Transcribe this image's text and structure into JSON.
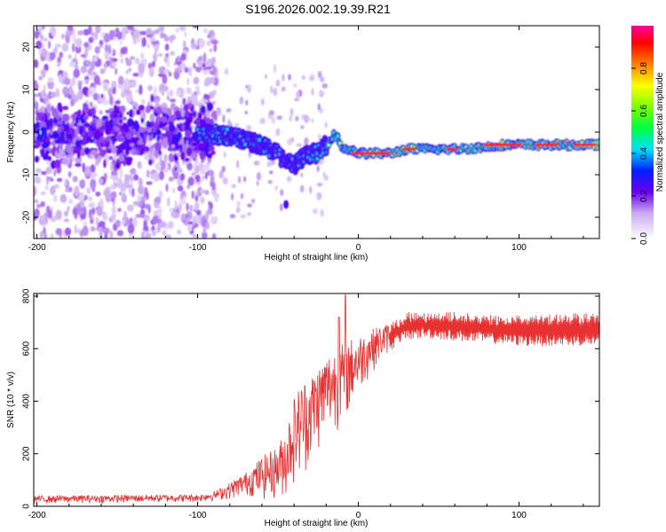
{
  "title": "S196.2026.002.19.39.R21",
  "chart_data": [
    {
      "type": "heatmap",
      "name": "spectrogram",
      "xlabel": "Height of straight line (km)",
      "ylabel": "Frequency (Hz)",
      "xlim": [
        -202,
        150
      ],
      "ylim": [
        -25,
        25
      ],
      "xticks": [
        -200,
        -100,
        0,
        100
      ],
      "yticks": [
        -20,
        -10,
        0,
        10,
        20
      ],
      "ridge": {
        "x": [
          -100,
          -90,
          -80,
          -70,
          -60,
          -50,
          -45,
          -40,
          -35,
          -30,
          -25,
          -20,
          -17,
          -15,
          -12,
          -10,
          -5,
          0,
          10,
          20,
          30,
          40,
          60,
          80,
          90,
          100,
          120,
          150
        ],
        "freq": [
          0,
          -0.5,
          -1,
          -2,
          -3,
          -5,
          -7,
          -8,
          -6,
          -5,
          -5,
          -3,
          -2,
          0,
          -2,
          -4,
          -4,
          -5,
          -5,
          -5,
          -4,
          -4,
          -4,
          -3.5,
          -3,
          -3,
          -3,
          -3
        ]
      },
      "colorbar": {
        "label": "Normalized spectral amplitude",
        "range": [
          0,
          1
        ],
        "ticks": [
          0.0,
          0.2,
          0.4,
          0.6,
          0.8
        ],
        "tick_labels": [
          "0.0",
          "0.2",
          "0.4",
          "0.6",
          "0.8"
        ]
      }
    },
    {
      "type": "line",
      "name": "snr",
      "xlabel": "Height of straight line (km)",
      "ylabel": "SNR (10 * v/v)",
      "xlim": [
        -202,
        150
      ],
      "ylim": [
        0,
        810
      ],
      "xticks": [
        -200,
        -100,
        0,
        100
      ],
      "yticks": [
        0,
        200,
        400,
        600,
        800
      ],
      "color": "#e83030",
      "envelope": {
        "x": [
          -202,
          -100,
          -90,
          -80,
          -70,
          -60,
          -50,
          -45,
          -40,
          -35,
          -30,
          -25,
          -20,
          -15,
          -10,
          -5,
          0,
          10,
          20,
          25,
          30,
          40,
          60,
          80,
          100,
          120,
          150
        ],
        "low": [
          10,
          15,
          20,
          25,
          40,
          20,
          20,
          30,
          80,
          100,
          150,
          200,
          250,
          280,
          300,
          350,
          420,
          520,
          590,
          620,
          630,
          640,
          630,
          620,
          610,
          610,
          610
        ],
        "high": [
          40,
          45,
          55,
          90,
          130,
          190,
          230,
          300,
          420,
          480,
          500,
          540,
          580,
          600,
          620,
          640,
          650,
          680,
          700,
          720,
          740,
          740,
          740,
          730,
          730,
          730,
          740
        ]
      },
      "spikes": [
        {
          "x": -8,
          "y": 805
        },
        {
          "x": -12,
          "y": 720
        }
      ]
    }
  ]
}
